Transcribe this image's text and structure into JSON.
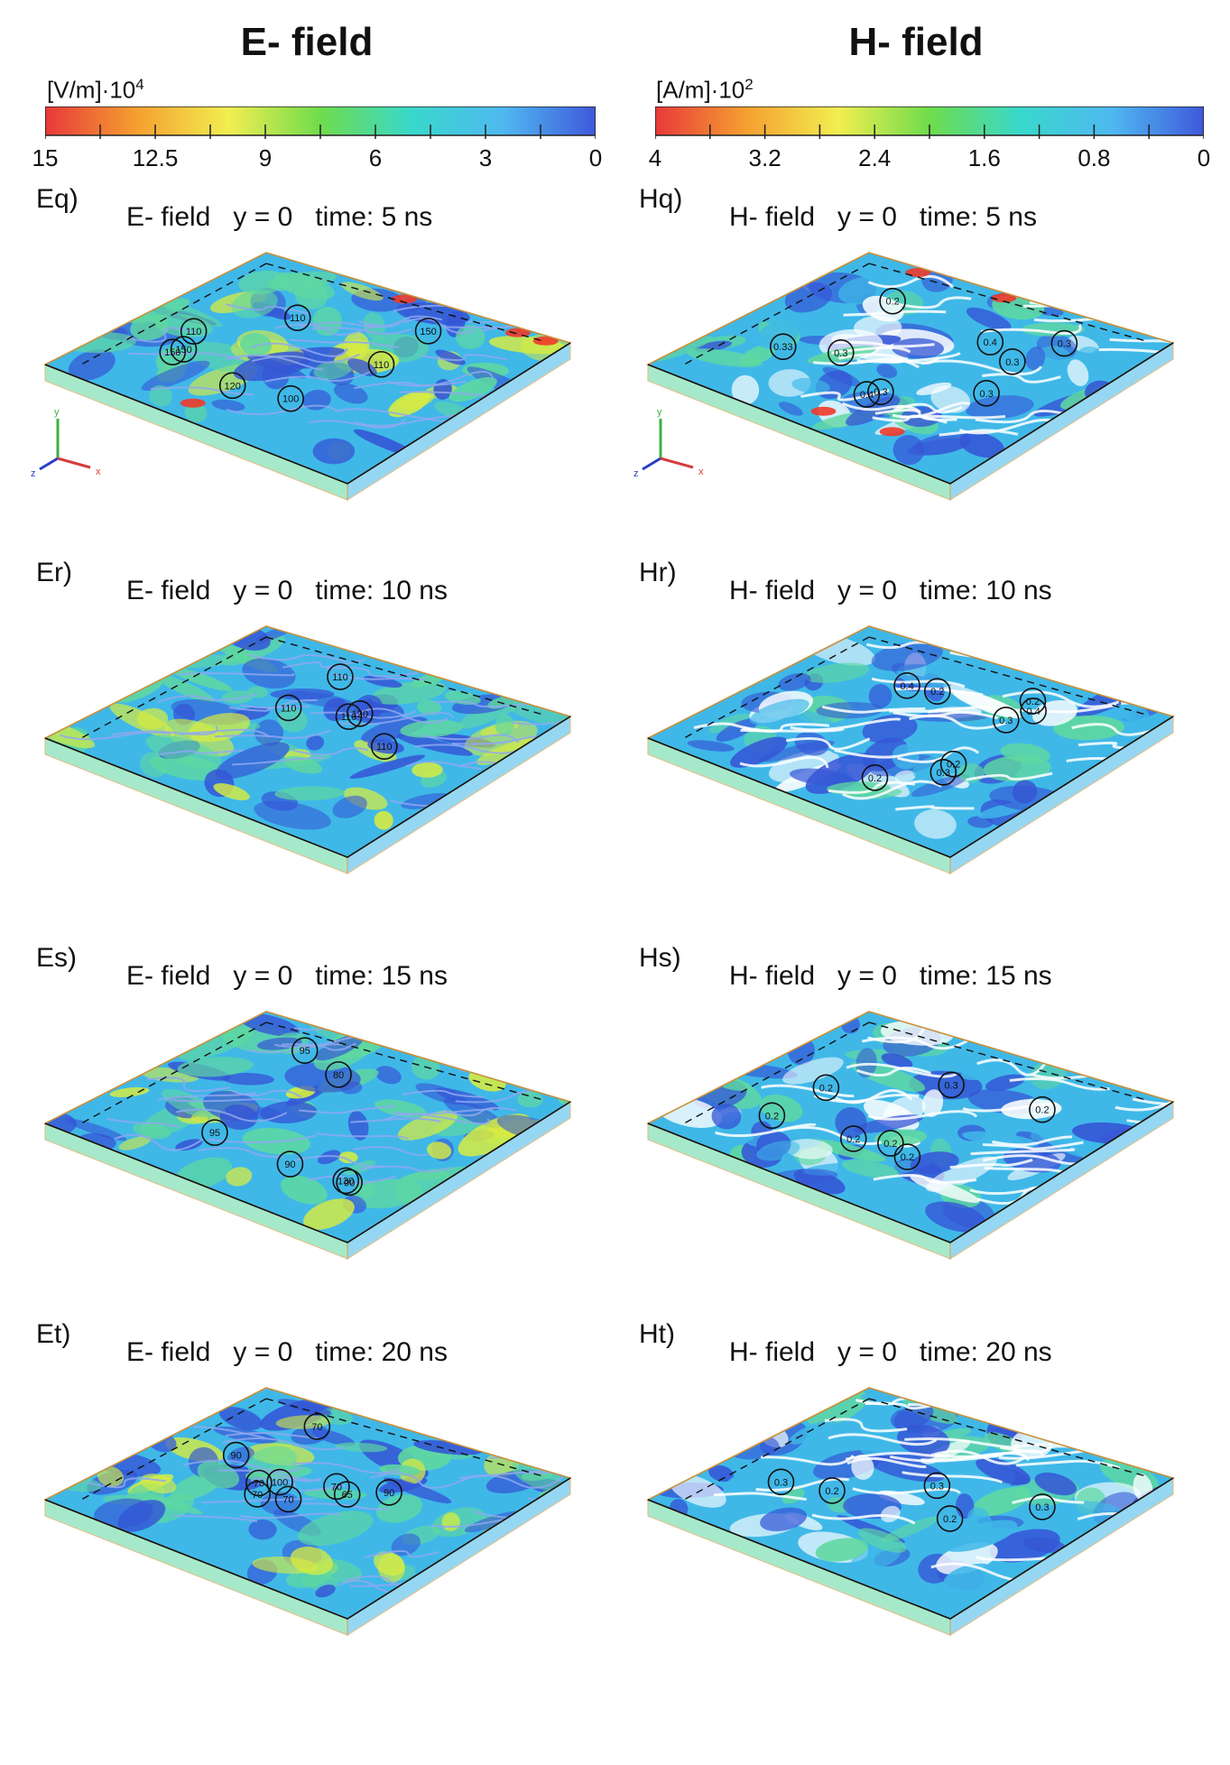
{
  "columns": [
    {
      "title": "E- field",
      "unit_base": "[V/m]·10",
      "unit_exp": "4",
      "ticks": [
        "15",
        "12.5",
        "9",
        "6",
        "3",
        "0"
      ],
      "panels": [
        {
          "tag": "Eq)",
          "title": "E- field   y = 0   time: 5 ns",
          "labels": [
            "110",
            "150",
            "100",
            "110",
            "120",
            "150",
            "110",
            "150"
          ]
        },
        {
          "tag": "Er)",
          "title": "E- field   y = 0   time: 10 ns",
          "labels": [
            "110",
            "110",
            "110",
            "120",
            "110"
          ]
        },
        {
          "tag": "Es)",
          "title": "E- field   y = 0   time: 15 ns",
          "labels": [
            "95",
            "130",
            "90",
            "80",
            "95",
            "90"
          ]
        },
        {
          "tag": "Et)",
          "title": "E- field   y = 0   time: 20 ns",
          "labels": [
            "70",
            "100",
            "65",
            "70",
            "70",
            "90",
            "70",
            "70",
            "90"
          ]
        }
      ]
    },
    {
      "title": "H- field",
      "unit_base": "[A/m]·10",
      "unit_exp": "2",
      "ticks": [
        "4",
        "3.2",
        "2.4",
        "1.6",
        "0.8",
        "0"
      ],
      "panels": [
        {
          "tag": "Hq)",
          "title": "H- field   y = 0   time: 5 ns",
          "labels": [
            "0.4",
            "0.3",
            "0.2",
            "0.3",
            "0.3",
            "0.3",
            "0.3",
            "0.4",
            "0.33"
          ]
        },
        {
          "tag": "Hr)",
          "title": "H- field   y = 0   time: 10 ns",
          "labels": [
            "0.2",
            "0.3",
            "0.2",
            "0.2",
            "0.4",
            "0.3",
            "0.2",
            "0.4"
          ]
        },
        {
          "tag": "Hs)",
          "title": "H- field   y = 0   time: 15 ns",
          "labels": [
            "0.2",
            "0.2",
            "0.3",
            "0.2",
            "0.2",
            "0.2",
            "0.2"
          ]
        },
        {
          "tag": "Ht)",
          "title": "H- field   y = 0   time: 20 ns",
          "labels": [
            "0.2",
            "0.3",
            "0.3",
            "0.2",
            "0.3"
          ]
        }
      ]
    }
  ],
  "axis_labels": [
    "y",
    "z",
    "x"
  ],
  "colors": {
    "colorbar_stops": [
      "#e8383a",
      "#f5a030",
      "#f2ee50",
      "#6fdc4c",
      "#38d8cc",
      "#4fb8f0",
      "#3f58dc"
    ],
    "field_base": "#3fb8e8",
    "field_low": "#3556d6",
    "field_mid": "#5fd8a0",
    "field_high": "#d8ec40",
    "field_peak": "#f03a2a",
    "box_edge": "#c8903a"
  }
}
